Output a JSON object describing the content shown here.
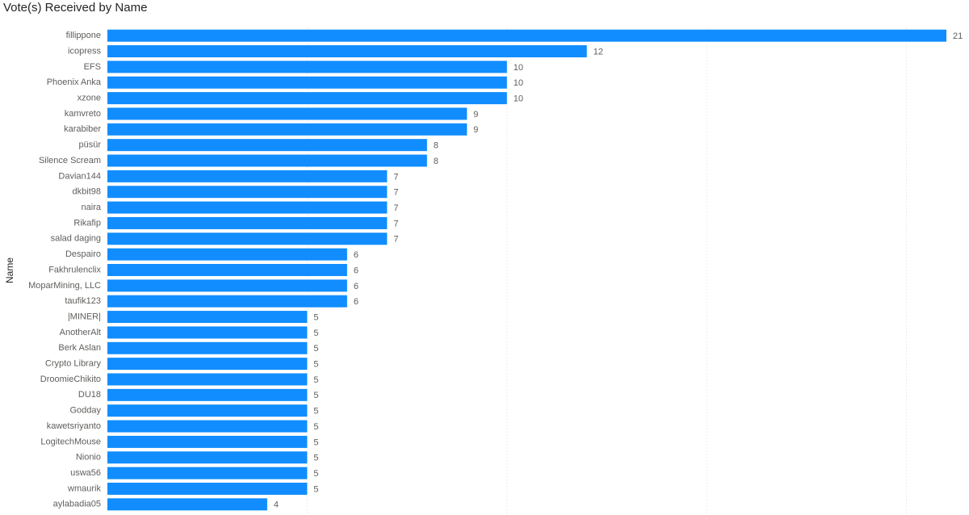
{
  "chart_data": {
    "type": "bar",
    "orientation": "horizontal",
    "title": "Vote(s) Received by Name",
    "y_label": "Name",
    "categories": [
      "fillippone",
      "icopress",
      "EFS",
      "Phoenix Anka",
      "xzone",
      "kamvreto",
      "karabiber",
      "püsür",
      "Silence Scream",
      "Davian144",
      "dkbit98",
      "naira",
      "Rikafip",
      "salad daging",
      "Despairo",
      "Fakhrulenclix",
      "MoparMining, LLC",
      "taufik123",
      "|MINER|",
      "AnotherAlt",
      "Berk Aslan",
      "Crypto Library",
      "DroomieChikito",
      "DU18",
      "Godday",
      "kawetsriyanto",
      "LogitechMouse",
      "Nionio",
      "uswa56",
      "wmaurik",
      "aylabadia05"
    ],
    "values": [
      21,
      12,
      10,
      10,
      10,
      9,
      9,
      8,
      8,
      7,
      7,
      7,
      7,
      7,
      6,
      6,
      6,
      6,
      5,
      5,
      5,
      5,
      5,
      5,
      5,
      5,
      5,
      5,
      5,
      5,
      4
    ],
    "color": "#118dff",
    "xlim": [
      0,
      21
    ],
    "xticks": [
      0,
      5,
      10,
      15,
      20
    ],
    "grid": true
  }
}
